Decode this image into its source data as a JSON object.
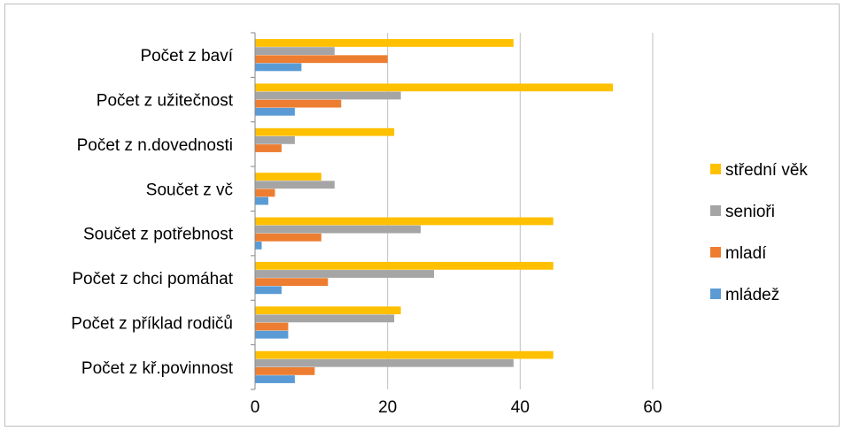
{
  "chart_data": {
    "type": "bar",
    "orientation": "horizontal",
    "categories": [
      "Počet z baví",
      "Počet z užitečnost",
      "Počet z n.dovednosti",
      "Součet z vč",
      "Součet z potřebnost",
      "Počet z chci pomáhat",
      "Počet z příklad rodičů",
      "Počet z kř.povinnost"
    ],
    "series": [
      {
        "name": "střední věk",
        "color": "#ffc000",
        "values": [
          39,
          54,
          21,
          10,
          45,
          45,
          22,
          45
        ]
      },
      {
        "name": "senioři",
        "color": "#a5a5a5",
        "values": [
          12,
          22,
          6,
          12,
          25,
          27,
          21,
          39
        ]
      },
      {
        "name": "mladí",
        "color": "#ed7d31",
        "values": [
          20,
          13,
          4,
          3,
          10,
          11,
          5,
          9
        ]
      },
      {
        "name": "mládež",
        "color": "#5b9bd5",
        "values": [
          7,
          6,
          0,
          2,
          1,
          4,
          5,
          6
        ]
      }
    ],
    "xticks": [
      "0",
      "20",
      "40",
      "60"
    ],
    "xlim": [
      0,
      60
    ],
    "grid": true,
    "legend_position": "right",
    "title": "",
    "xlabel": "",
    "ylabel": ""
  }
}
